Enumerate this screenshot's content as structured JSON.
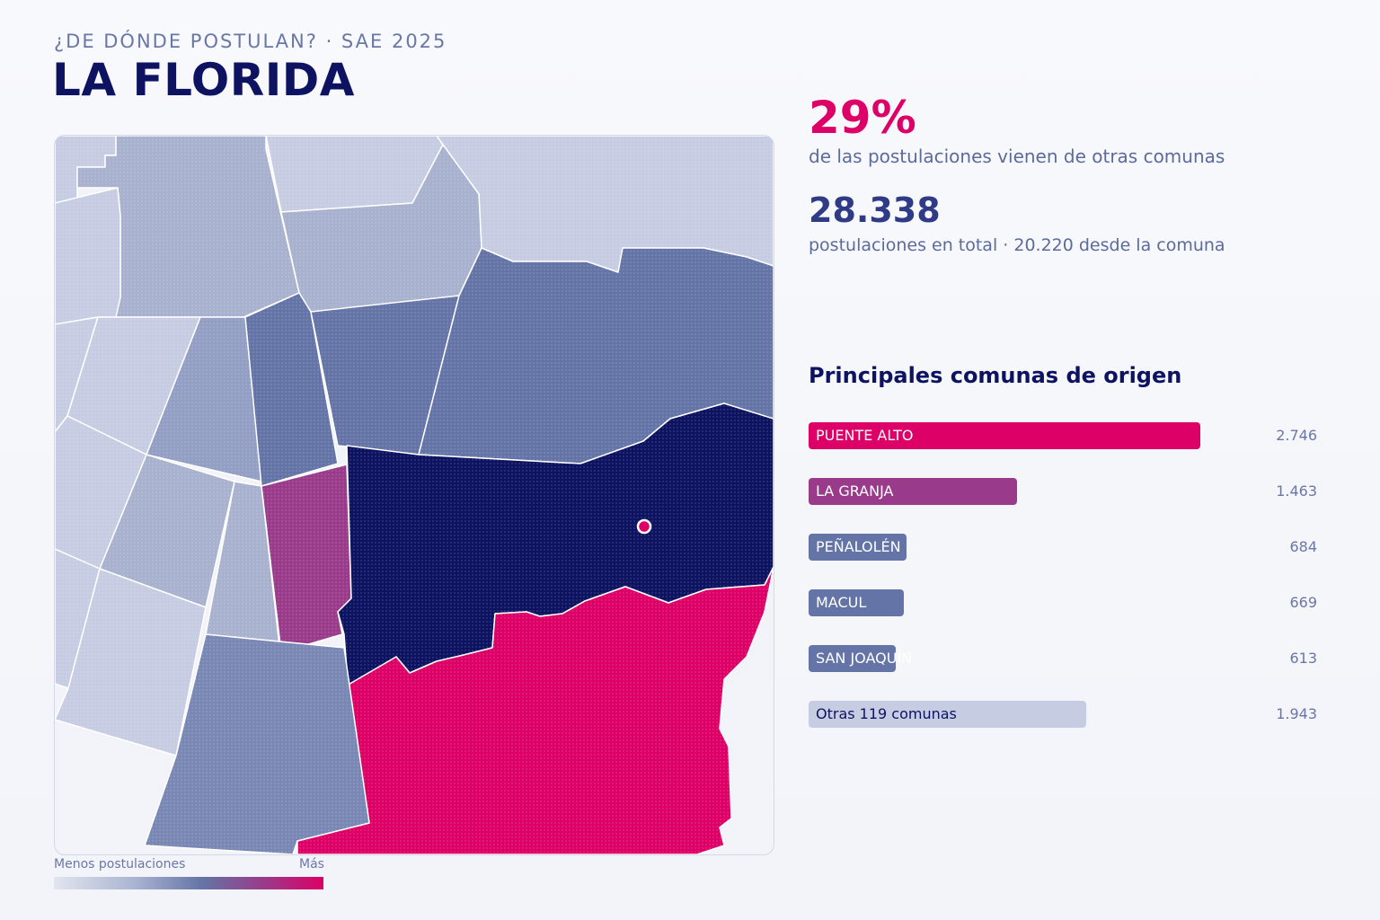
{
  "header": {
    "kicker": "¿DE DÓNDE POSTULAN? · SAE 2025",
    "title": "LA FLORIDA"
  },
  "stats": {
    "pct_value": "29%",
    "pct_label": "de las postulaciones vienen de otras comunas",
    "total_value": "28.338",
    "total_label": "postulaciones en total · 20.220 desde la comuna"
  },
  "origins": {
    "title": "Principales comunas de origen",
    "max_value": 2746,
    "items": [
      {
        "name": "PUENTE ALTO",
        "value": 2746,
        "display": "2.746",
        "color": "#dd0066",
        "label_color": "#ffffff"
      },
      {
        "name": "LA GRANJA",
        "value": 1463,
        "display": "1.463",
        "color": "#9a3a8a",
        "label_color": "#ffffff"
      },
      {
        "name": "PEÑALOLÉN",
        "value": 684,
        "display": "684",
        "color": "#6474a6",
        "label_color": "#ffffff"
      },
      {
        "name": "MACUL",
        "value": 669,
        "display": "669",
        "color": "#6474a6",
        "label_color": "#ffffff"
      },
      {
        "name": "SAN JOAQUÍN",
        "value": 613,
        "display": "613",
        "color": "#6474a6",
        "label_color": "#ffffff"
      },
      {
        "name": "Otras 119 comunas",
        "value": 1943,
        "display": "1.943",
        "color": "#c6cce2",
        "label_color": "#0d1360"
      }
    ]
  },
  "legend": {
    "low_label": "Menos postulaciones",
    "high_label": "Más"
  },
  "colors": {
    "accent": "#dd0066",
    "dark": "#0d1360",
    "mid": "#6474a6"
  }
}
